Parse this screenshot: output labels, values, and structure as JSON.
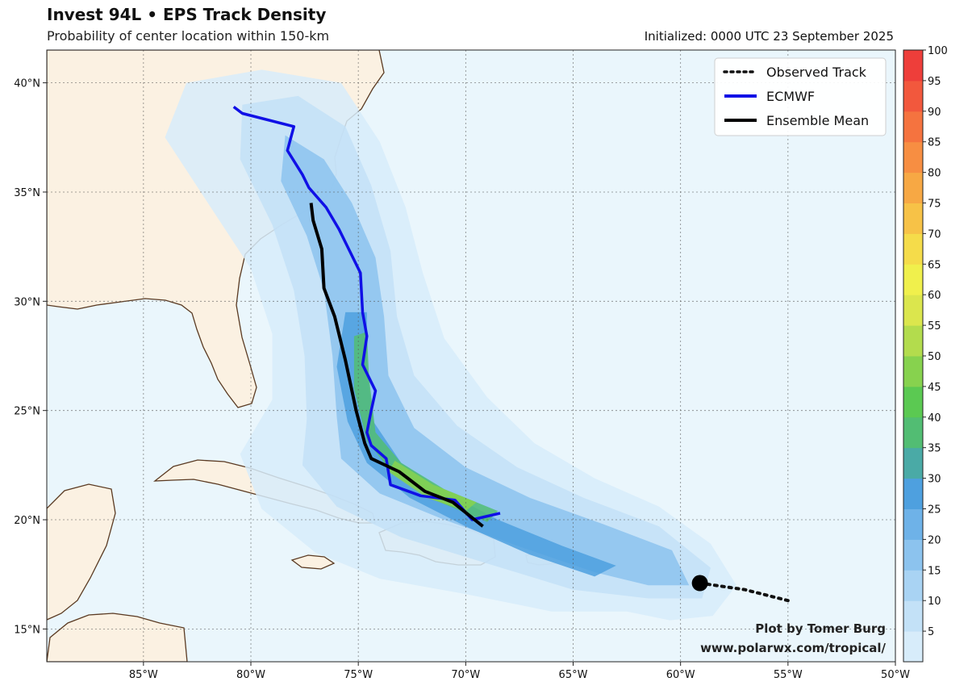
{
  "header": {
    "title": "Invest 94L • EPS Track Density",
    "subtitle": "Probability of center location within 150-km",
    "initialized": "Initialized: 0000 UTC 23 September 2025"
  },
  "map": {
    "lon_range": [
      -89.5,
      -50
    ],
    "lat_range": [
      13.5,
      41.5
    ],
    "lon_ticks": [
      {
        "value": -85,
        "label": "85°W"
      },
      {
        "value": -80,
        "label": "80°W"
      },
      {
        "value": -75,
        "label": "75°W"
      },
      {
        "value": -70,
        "label": "70°W"
      },
      {
        "value": -65,
        "label": "65°W"
      },
      {
        "value": -60,
        "label": "60°W"
      },
      {
        "value": -55,
        "label": "55°W"
      },
      {
        "value": -50,
        "label": "50°W"
      }
    ],
    "lat_ticks": [
      {
        "value": 15,
        "label": "15°N"
      },
      {
        "value": 20,
        "label": "20°N"
      },
      {
        "value": 25,
        "label": "25°N"
      },
      {
        "value": 30,
        "label": "30°N"
      },
      {
        "value": 35,
        "label": "35°N"
      },
      {
        "value": 40,
        "label": "40°N"
      }
    ],
    "colors": {
      "ocean": "#eaf6fc",
      "land": "#fbf1e2",
      "coast": "#5a3a22",
      "ecmwf": "#1010e6",
      "mean": "#000000",
      "observed": "#111111"
    }
  },
  "legend": {
    "items": [
      {
        "label": "Observed Track",
        "style": "dotted",
        "color": "#111111"
      },
      {
        "label": "ECMWF",
        "style": "solid",
        "color": "#1010e6"
      },
      {
        "label": "Ensemble Mean",
        "style": "solid",
        "color": "#000000"
      }
    ]
  },
  "colorbar": {
    "ticks": [
      "5",
      "10",
      "15",
      "20",
      "25",
      "30",
      "35",
      "40",
      "45",
      "50",
      "55",
      "60",
      "65",
      "70",
      "75",
      "80",
      "85",
      "90",
      "95",
      "100"
    ],
    "colors": [
      "#d7ecfa",
      "#c3e1f7",
      "#a9d3f3",
      "#8cc3ee",
      "#6eb2e8",
      "#4ea0df",
      "#4aaaa6",
      "#52bd73",
      "#5bc952",
      "#87d24e",
      "#b3dc4d",
      "#dbe64d",
      "#f0f04c",
      "#f5dc4a",
      "#f7c247",
      "#f7a844",
      "#f78e42",
      "#f5733f",
      "#f2583d",
      "#ee3e3a"
    ]
  },
  "chart_data": {
    "type": "map",
    "units": "percent probability",
    "observed_track": [
      [
        -55,
        16.3
      ],
      [
        -57,
        16.8
      ],
      [
        -59.1,
        17.1
      ]
    ],
    "current_position": [
      -59.1,
      17.1
    ],
    "ecmwf_track": [
      [
        -68.4,
        20.3
      ],
      [
        -69.7,
        20.0
      ],
      [
        -70.5,
        20.9
      ],
      [
        -72.1,
        21.1
      ],
      [
        -73.5,
        21.6
      ],
      [
        -73.7,
        22.8
      ],
      [
        -74.4,
        23.4
      ],
      [
        -74.6,
        24.0
      ],
      [
        -74.5,
        24.5
      ],
      [
        -74.4,
        25.0
      ],
      [
        -74.2,
        25.9
      ],
      [
        -74.8,
        27.1
      ],
      [
        -74.6,
        28.4
      ],
      [
        -74.8,
        29.5
      ],
      [
        -74.9,
        31.3
      ],
      [
        -75.9,
        33.3
      ],
      [
        -76.5,
        34.3
      ],
      [
        -77.3,
        35.2
      ],
      [
        -77.6,
        35.8
      ],
      [
        -78.3,
        36.9
      ],
      [
        -78.0,
        38.0
      ],
      [
        -80.4,
        38.6
      ],
      [
        -80.8,
        38.9
      ]
    ],
    "ensemble_mean_track": [
      [
        -69.2,
        19.7
      ],
      [
        -70.6,
        20.8
      ],
      [
        -71.9,
        21.3
      ],
      [
        -73.1,
        22.2
      ],
      [
        -74.4,
        22.8
      ],
      [
        -74.7,
        23.5
      ],
      [
        -75.1,
        25.0
      ],
      [
        -75.6,
        27.3
      ],
      [
        -76.1,
        29.3
      ],
      [
        -76.6,
        30.6
      ],
      [
        -76.7,
        32.4
      ],
      [
        -77.1,
        33.7
      ],
      [
        -77.2,
        34.5
      ]
    ],
    "density_contours": [
      {
        "level": 5,
        "shape": [
          [
            -62.5,
            15.8
          ],
          [
            -60.5,
            15.4
          ],
          [
            -58.5,
            15.6
          ],
          [
            -57.4,
            17.0
          ],
          [
            -58.6,
            18.9
          ],
          [
            -61.0,
            20.6
          ],
          [
            -64.0,
            21.9
          ],
          [
            -66.8,
            23.5
          ],
          [
            -69.0,
            25.6
          ],
          [
            -71.0,
            28.3
          ],
          [
            -72.0,
            31.3
          ],
          [
            -72.8,
            34.3
          ],
          [
            -74.0,
            37.3
          ],
          [
            -75.8,
            40.0
          ],
          [
            -79.5,
            40.6
          ],
          [
            -83.0,
            40.0
          ],
          [
            -84.0,
            37.5
          ],
          [
            -82.0,
            34.5
          ],
          [
            -80.0,
            31.5
          ],
          [
            -79.0,
            28.5
          ],
          [
            -79.0,
            25.5
          ],
          [
            -80.5,
            23.0
          ],
          [
            -79.5,
            20.5
          ],
          [
            -77.0,
            18.5
          ],
          [
            -74.0,
            17.3
          ],
          [
            -70.0,
            16.6
          ],
          [
            -66.0,
            15.8
          ]
        ]
      },
      {
        "level": 10,
        "shape": [
          [
            -61.5,
            16.4
          ],
          [
            -59.0,
            16.4
          ],
          [
            -58.6,
            17.8
          ],
          [
            -61.0,
            19.7
          ],
          [
            -64.5,
            21.0
          ],
          [
            -67.6,
            22.4
          ],
          [
            -70.4,
            24.3
          ],
          [
            -72.4,
            26.6
          ],
          [
            -73.2,
            29.3
          ],
          [
            -73.5,
            32.3
          ],
          [
            -74.4,
            35.3
          ],
          [
            -75.6,
            38.0
          ],
          [
            -77.8,
            39.4
          ],
          [
            -80.4,
            39.0
          ],
          [
            -80.5,
            36.5
          ],
          [
            -79.0,
            33.5
          ],
          [
            -78.0,
            30.5
          ],
          [
            -77.5,
            27.5
          ],
          [
            -77.4,
            24.6
          ],
          [
            -77.6,
            22.5
          ],
          [
            -76.0,
            20.6
          ],
          [
            -73.0,
            19.2
          ],
          [
            -69.0,
            18.0
          ],
          [
            -65.0,
            16.8
          ]
        ]
      },
      {
        "level": 20,
        "shape": [
          [
            -61.5,
            17.0
          ],
          [
            -59.6,
            17.0
          ],
          [
            -60.4,
            18.6
          ],
          [
            -63.6,
            19.8
          ],
          [
            -67.0,
            21.0
          ],
          [
            -70.0,
            22.4
          ],
          [
            -72.4,
            24.2
          ],
          [
            -73.6,
            26.6
          ],
          [
            -73.8,
            29.3
          ],
          [
            -74.2,
            32.0
          ],
          [
            -75.3,
            34.5
          ],
          [
            -76.6,
            36.5
          ],
          [
            -78.4,
            37.6
          ],
          [
            -78.6,
            35.5
          ],
          [
            -77.4,
            33.0
          ],
          [
            -76.6,
            30.5
          ],
          [
            -76.2,
            27.5
          ],
          [
            -76.0,
            24.7
          ],
          [
            -75.8,
            22.8
          ],
          [
            -74.0,
            21.2
          ],
          [
            -71.0,
            20.0
          ],
          [
            -67.0,
            18.6
          ],
          [
            -64.0,
            17.6
          ]
        ]
      },
      {
        "level": 30,
        "shape": [
          [
            -63.0,
            17.9
          ],
          [
            -65.5,
            18.8
          ],
          [
            -68.5,
            20.0
          ],
          [
            -71.0,
            21.3
          ],
          [
            -73.0,
            22.6
          ],
          [
            -74.3,
            24.5
          ],
          [
            -74.6,
            27.0
          ],
          [
            -74.6,
            29.5
          ],
          [
            -75.6,
            29.5
          ],
          [
            -76.0,
            27.0
          ],
          [
            -75.5,
            24.5
          ],
          [
            -74.6,
            22.6
          ],
          [
            -72.6,
            21.0
          ],
          [
            -70.0,
            19.7
          ],
          [
            -67.0,
            18.4
          ],
          [
            -64.0,
            17.4
          ]
        ]
      },
      {
        "level": 40,
        "shape": [
          [
            -68.5,
            20.4
          ],
          [
            -71.0,
            21.4
          ],
          [
            -73.0,
            22.6
          ],
          [
            -74.2,
            24.0
          ],
          [
            -74.5,
            26.5
          ],
          [
            -74.6,
            28.6
          ],
          [
            -75.2,
            28.4
          ],
          [
            -75.2,
            26.0
          ],
          [
            -74.6,
            23.6
          ],
          [
            -73.3,
            22.0
          ],
          [
            -71.2,
            20.8
          ],
          [
            -69.0,
            19.9
          ]
        ]
      },
      {
        "level": 50,
        "shape": [
          [
            -69.5,
            20.8
          ],
          [
            -71.5,
            21.6
          ],
          [
            -73.3,
            22.7
          ],
          [
            -73.6,
            22.2
          ],
          [
            -71.8,
            21.0
          ],
          [
            -70.0,
            20.4
          ]
        ]
      }
    ]
  },
  "credit": {
    "line1": "Plot by Tomer Burg",
    "line2": "www.polarwx.com/tropical/"
  }
}
